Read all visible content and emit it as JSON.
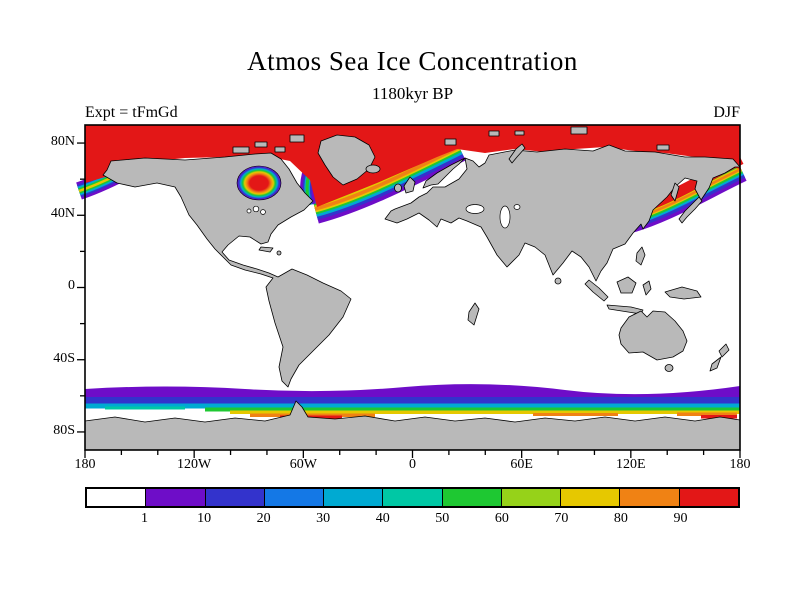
{
  "figure": {
    "title": "Atmos Sea Ice Concentration",
    "subtitle": "1180kyr BP",
    "experiment_label": "Expt = tFmGd",
    "season_label": "DJF"
  },
  "axes": {
    "y_ticks": [
      "80N",
      "40N",
      "0",
      "40S",
      "80S"
    ],
    "x_ticks": [
      "180",
      "120W",
      "60W",
      "0",
      "60E",
      "120E",
      "180"
    ]
  },
  "colorbar": {
    "labels": [
      "1",
      "10",
      "20",
      "30",
      "40",
      "50",
      "60",
      "70",
      "80",
      "90"
    ],
    "colors": [
      "#ffffff",
      "#6e0dc8",
      "#3333cc",
      "#1478e6",
      "#00aad2",
      "#00c8a5",
      "#1ec832",
      "#96d219",
      "#e6c800",
      "#f08214",
      "#e31717"
    ]
  },
  "map": {
    "land_color": "#b9b9b9",
    "ocean_color": "#ffffff",
    "full_ice_color": "#e31717"
  },
  "chart_data": {
    "type": "heatmap",
    "title": "Atmos Sea Ice Concentration",
    "subtitle": "1180kyr BP",
    "experiment": "tFmGd",
    "season": "DJF",
    "projection": "equirectangular world map, Greenwich-centered",
    "x_axis": {
      "tick_labels": [
        "180",
        "120W",
        "60W",
        "0",
        "60E",
        "120E",
        "180"
      ],
      "range_deg": [
        -180,
        180
      ]
    },
    "y_axis": {
      "tick_labels": [
        "80N",
        "40N",
        "0",
        "40S",
        "80S"
      ],
      "range_deg": [
        -90,
        90
      ]
    },
    "colorbar": {
      "boundaries": [
        1,
        10,
        20,
        30,
        40,
        50,
        60,
        70,
        80,
        90
      ],
      "cell_colors": [
        "#ffffff",
        "#6e0dc8",
        "#3333cc",
        "#1478e6",
        "#00aad2",
        "#00c8a5",
        "#1ec832",
        "#96d219",
        "#e6c800",
        "#f08214",
        "#e31717"
      ],
      "quantity": "sea ice concentration"
    },
    "land_mask_color": "#b9b9b9",
    "features": [
      "Arctic Ocean and adjacent polar seas fully ice covered (top color bin, red) north of roughly 65N",
      "Rainbow concentration gradient (1-90) across the North Atlantic ice edge between Labrador, southern Greenland and northern Norway",
      "Hudson Bay filled with maximum-concentration ice surrounded by a ringed gradient",
      "Marginal ice bands with full gradient in the Bering Sea (map edges) and Sea of Okhotsk / northwest Pacific",
      "Continuous circumpolar Antarctic sea-ice band near 55S-70S, mostly 1-50, with higher concentrations (60-90+) against the coast near the Weddell Sea, 30E-60E and 140E-170E sectors",
      "Continents masked gray; ice-free ocean white"
    ]
  }
}
